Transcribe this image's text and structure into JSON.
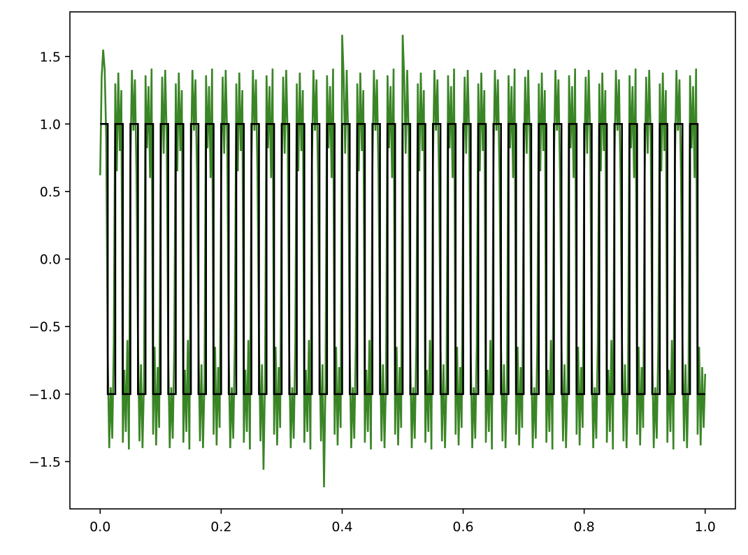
{
  "chart_data": {
    "type": "line",
    "xlim": [
      -0.05,
      1.05
    ],
    "ylim": [
      -1.85,
      1.83
    ],
    "xticks": [
      {
        "value": 0,
        "label": "0.0"
      },
      0.2,
      0.4,
      0.6,
      0.8,
      {
        "value": 1,
        "label": "1.0"
      }
    ],
    "yticks": [
      {
        "value": -1.5,
        "label": "−1.5"
      },
      {
        "value": -1,
        "label": "−1.0"
      },
      {
        "value": -0.5,
        "label": "−0.5"
      },
      {
        "value": 0,
        "label": "0.0"
      },
      0.5,
      {
        "value": 1,
        "label": "1.0"
      },
      1.5
    ],
    "series": [
      {
        "color": "#3a8526",
        "x": [
          0,
          0.0025,
          0.005,
          0.0075,
          0.01,
          0.0125,
          0.015,
          0.0175,
          0.02,
          0.0225,
          0.025,
          0.0275,
          0.03,
          0.0325,
          0.035,
          0.0375,
          0.04,
          0.0425,
          0.045,
          0.0475,
          0.05,
          0.0525,
          0.055,
          0.0575,
          0.06,
          0.0625,
          0.065,
          0.0675,
          0.07,
          0.0725,
          0.075,
          0.0775,
          0.08,
          0.0825,
          0.085,
          0.0875,
          0.09,
          0.0925,
          0.095,
          0.0975,
          0.1,
          0.1025,
          0.105,
          0.1075,
          0.11,
          0.1125,
          0.115,
          0.1175,
          0.12,
          0.1225,
          0.125,
          0.1275,
          0.13,
          0.1325,
          0.135,
          0.1375,
          0.14,
          0.1425,
          0.145,
          0.1475,
          0.15,
          0.1525,
          0.155,
          0.1575,
          0.16,
          0.1625,
          0.165,
          0.1675,
          0.17,
          0.1725,
          0.175,
          0.1775,
          0.18,
          0.1825,
          0.185,
          0.1875,
          0.19,
          0.1925,
          0.195,
          0.1975,
          0.2,
          0.2025,
          0.205,
          0.2075,
          0.21,
          0.2125,
          0.215,
          0.2175,
          0.22,
          0.2225,
          0.225,
          0.2275,
          0.23,
          0.2325,
          0.235,
          0.2375,
          0.24,
          0.2425,
          0.245,
          0.2475,
          0.25,
          0.2525,
          0.255,
          0.2575,
          0.26,
          0.2625,
          0.265,
          0.2675,
          0.27,
          0.2725,
          0.275,
          0.2775,
          0.28,
          0.2825,
          0.285,
          0.2875,
          0.29,
          0.2925,
          0.295,
          0.2975,
          0.3,
          0.3025,
          0.305,
          0.3075,
          0.31,
          0.3125,
          0.315,
          0.3175,
          0.32,
          0.3225,
          0.325,
          0.3275,
          0.33,
          0.3325,
          0.335,
          0.3375,
          0.34,
          0.3425,
          0.345,
          0.3475,
          0.35,
          0.3525,
          0.355,
          0.3575,
          0.36,
          0.3625,
          0.365,
          0.3675,
          0.37,
          0.3725,
          0.375,
          0.3775,
          0.38,
          0.3825,
          0.385,
          0.3875,
          0.39,
          0.3925,
          0.395,
          0.3975,
          0.4,
          0.4025,
          0.405,
          0.4075,
          0.41,
          0.4125,
          0.415,
          0.4175,
          0.42,
          0.4225,
          0.425,
          0.4275,
          0.43,
          0.4325,
          0.435,
          0.4375,
          0.44,
          0.4425,
          0.445,
          0.4475,
          0.45,
          0.4525,
          0.455,
          0.4575,
          0.46,
          0.4625,
          0.465,
          0.4675,
          0.47,
          0.4725,
          0.475,
          0.4775,
          0.48,
          0.4825,
          0.485,
          0.4875,
          0.49,
          0.4925,
          0.495,
          0.4975,
          0.5,
          0.5025,
          0.505,
          0.5075,
          0.51,
          0.5125,
          0.515,
          0.5175,
          0.52,
          0.5225,
          0.525,
          0.5275,
          0.53,
          0.5325,
          0.535,
          0.5375,
          0.54,
          0.5425,
          0.545,
          0.5475,
          0.55,
          0.5525,
          0.555,
          0.5575,
          0.56,
          0.5625,
          0.565,
          0.5675,
          0.57,
          0.5725,
          0.575,
          0.5775,
          0.58,
          0.5825,
          0.585,
          0.5875,
          0.59,
          0.5925,
          0.595,
          0.5975,
          0.6,
          0.6025,
          0.605,
          0.6075,
          0.61,
          0.6125,
          0.615,
          0.6175,
          0.62,
          0.6225,
          0.625,
          0.6275,
          0.63,
          0.6325,
          0.635,
          0.6375,
          0.64,
          0.6425,
          0.645,
          0.6475,
          0.65,
          0.6525,
          0.655,
          0.6575,
          0.66,
          0.6625,
          0.665,
          0.6675,
          0.67,
          0.6725,
          0.675,
          0.6775,
          0.68,
          0.6825,
          0.685,
          0.6875,
          0.69,
          0.6925,
          0.695,
          0.6975,
          0.7,
          0.7025,
          0.705,
          0.7075,
          0.71,
          0.7125,
          0.715,
          0.7175,
          0.72,
          0.7225,
          0.725,
          0.7275,
          0.73,
          0.7325,
          0.735,
          0.7375,
          0.74,
          0.7425,
          0.745,
          0.7475,
          0.75,
          0.7525,
          0.755,
          0.7575,
          0.76,
          0.7625,
          0.765,
          0.7675,
          0.77,
          0.7725,
          0.775,
          0.7775,
          0.78,
          0.7825,
          0.785,
          0.7875,
          0.79,
          0.7925,
          0.795,
          0.7975,
          0.8,
          0.8025,
          0.805,
          0.8075,
          0.81,
          0.8125,
          0.815,
          0.8175,
          0.82,
          0.8225,
          0.825,
          0.8275,
          0.83,
          0.8325,
          0.835,
          0.8375,
          0.84,
          0.8425,
          0.845,
          0.8475,
          0.85,
          0.8525,
          0.855,
          0.8575,
          0.86,
          0.8625,
          0.865,
          0.8675,
          0.87,
          0.8725,
          0.875,
          0.8775,
          0.88,
          0.8825,
          0.885,
          0.8875,
          0.89,
          0.8925,
          0.895,
          0.8975,
          0.9,
          0.9025,
          0.905,
          0.9075,
          0.91,
          0.9125,
          0.915,
          0.9175,
          0.92,
          0.9225,
          0.925,
          0.9275,
          0.93,
          0.9325,
          0.935,
          0.9375,
          0.94,
          0.9425,
          0.945,
          0.9475,
          0.95,
          0.9525,
          0.955,
          0.9575,
          0.96,
          0.9625,
          0.965,
          0.9675,
          0.97,
          0.9725,
          0.975,
          0.9775,
          0.98,
          0.9825,
          0.985,
          0.9875,
          0.99,
          0.9925,
          0.995,
          0.9975,
          1
        ],
        "values": [
          0.62,
          1.35,
          1.55,
          1.4,
          0.9,
          -0.7,
          -1.4,
          -0.95,
          -1.33,
          -0.64,
          1.3,
          0.65,
          1.38,
          0.8,
          1.25,
          -1.36,
          -0.82,
          -1.28,
          -0.6,
          -1.41,
          0.7,
          1.4,
          0.95,
          1.33,
          0.64,
          -0.62,
          -1.35,
          -0.78,
          -1.4,
          -0.9,
          1.36,
          0.82,
          1.28,
          0.6,
          1.41,
          -1.3,
          -0.65,
          -1.38,
          -0.8,
          -1.25,
          0.62,
          1.35,
          0.78,
          1.4,
          0.9,
          -0.7,
          -1.4,
          -0.95,
          -1.33,
          -0.64,
          1.3,
          0.65,
          1.38,
          0.8,
          1.25,
          -1.36,
          -0.82,
          -1.28,
          -0.6,
          -1.41,
          0.7,
          1.4,
          0.95,
          1.33,
          0.64,
          -0.62,
          -1.35,
          -0.78,
          -1.4,
          -0.9,
          1.36,
          0.82,
          1.28,
          0.6,
          1.41,
          -1.3,
          -0.65,
          -1.38,
          -0.8,
          -1.25,
          0.62,
          1.35,
          0.78,
          1.4,
          0.9,
          -0.7,
          -1.4,
          -0.95,
          -1.33,
          -0.64,
          1.3,
          0.65,
          1.38,
          0.8,
          1.25,
          -1.36,
          -0.82,
          -1.28,
          -0.6,
          -1.41,
          0.7,
          1.4,
          0.95,
          1.33,
          0.64,
          -0.62,
          -1.35,
          -0.78,
          -1.56,
          -0.9,
          1.36,
          0.82,
          1.28,
          0.6,
          1.41,
          -1.3,
          -0.65,
          -1.38,
          -0.8,
          -1.25,
          0.62,
          1.35,
          0.78,
          1.4,
          0.9,
          -0.7,
          -1.4,
          -0.95,
          -1.33,
          -0.64,
          1.3,
          0.65,
          1.38,
          0.8,
          1.25,
          -1.36,
          -0.82,
          -1.28,
          -0.6,
          -1.41,
          0.7,
          1.4,
          0.95,
          1.33,
          0.64,
          -0.62,
          -1.35,
          -0.78,
          -1.69,
          -0.9,
          1.36,
          0.82,
          1.28,
          0.6,
          1.41,
          -1.3,
          -0.65,
          -1.38,
          -0.8,
          -1.25,
          1.66,
          1.35,
          0.78,
          1.4,
          0.9,
          -0.7,
          -1.4,
          -0.95,
          -1.33,
          -0.64,
          1.3,
          0.65,
          1.38,
          0.8,
          1.25,
          -1.36,
          -0.82,
          -1.28,
          -0.6,
          -1.41,
          0.7,
          1.4,
          0.95,
          1.33,
          0.64,
          -0.62,
          -1.35,
          -0.78,
          -1.4,
          -0.9,
          1.36,
          0.82,
          1.28,
          0.6,
          1.41,
          -1.3,
          -0.65,
          -1.38,
          -0.8,
          -1.25,
          1.66,
          1.35,
          0.78,
          1.4,
          0.9,
          -0.7,
          -1.4,
          -0.95,
          -1.33,
          -0.64,
          1.3,
          0.65,
          1.38,
          0.8,
          1.25,
          -1.36,
          -0.82,
          -1.28,
          -0.6,
          -1.41,
          0.7,
          1.4,
          0.95,
          1.33,
          0.64,
          -0.62,
          -1.35,
          -0.78,
          -1.4,
          -0.9,
          1.36,
          0.82,
          1.28,
          0.6,
          1.41,
          -1.3,
          -0.65,
          -1.38,
          -0.8,
          -1.25,
          0.62,
          1.35,
          0.78,
          1.4,
          0.9,
          -0.7,
          -1.4,
          -0.95,
          -1.33,
          -0.64,
          1.3,
          0.65,
          1.38,
          0.8,
          1.25,
          -1.36,
          -0.82,
          -1.28,
          -0.6,
          -1.41,
          0.7,
          1.4,
          0.95,
          1.33,
          0.64,
          -0.62,
          -1.35,
          -0.78,
          -1.4,
          -0.9,
          1.36,
          0.82,
          1.28,
          0.6,
          1.41,
          -1.3,
          -0.65,
          -1.38,
          -0.8,
          -1.25,
          0.62,
          1.35,
          0.78,
          1.4,
          0.9,
          -0.7,
          -1.4,
          -0.95,
          -1.33,
          -0.64,
          1.3,
          0.65,
          1.38,
          0.8,
          1.25,
          -1.36,
          -0.82,
          -1.28,
          -0.6,
          -1.41,
          0.7,
          1.4,
          0.95,
          1.33,
          0.64,
          -0.62,
          -1.35,
          -0.78,
          -1.4,
          -0.9,
          1.36,
          0.82,
          1.28,
          0.6,
          1.41,
          -1.3,
          -0.65,
          -1.38,
          -0.8,
          -1.25,
          0.62,
          1.35,
          0.78,
          1.4,
          0.9,
          -0.7,
          -1.4,
          -0.95,
          -1.33,
          -0.64,
          1.3,
          0.65,
          1.38,
          0.8,
          1.25,
          -1.36,
          -0.82,
          -1.28,
          -0.6,
          -1.41,
          0.7,
          1.4,
          0.95,
          1.33,
          0.64,
          -0.62,
          -1.35,
          -0.78,
          -1.4,
          -0.9,
          1.36,
          0.82,
          1.28,
          0.6,
          1.41,
          -1.3,
          -0.65,
          -1.38,
          -0.8,
          -1.25,
          0.62,
          1.35,
          0.78,
          1.4,
          0.9,
          -0.7,
          -1.4,
          -0.95,
          -1.33,
          -0.64,
          1.3,
          0.65,
          1.38,
          0.8,
          1.25,
          -1.36,
          -0.82,
          -1.28,
          -0.6,
          -1.41,
          0.7,
          1.4,
          0.95,
          1.33,
          0.64,
          -0.62,
          -1.35,
          -0.78,
          -1.4,
          -0.9,
          1.36,
          0.82,
          1.28,
          0.6,
          1.41,
          -1.3,
          -0.65,
          -1.38,
          -0.8,
          -1.25,
          -0.85
        ]
      },
      {
        "color": "#000000",
        "x": [
          0,
          0.0125,
          0.0125,
          0.025,
          0.025,
          0.0375,
          0.0375,
          0.05,
          0.05,
          0.0625,
          0.0625,
          0.075,
          0.075,
          0.0875,
          0.0875,
          0.1,
          0.1,
          0.1125,
          0.1125,
          0.125,
          0.125,
          0.1375,
          0.1375,
          0.15,
          0.15,
          0.1625,
          0.1625,
          0.175,
          0.175,
          0.1875,
          0.1875,
          0.2,
          0.2,
          0.2125,
          0.2125,
          0.225,
          0.225,
          0.2375,
          0.2375,
          0.25,
          0.25,
          0.2625,
          0.2625,
          0.275,
          0.275,
          0.2875,
          0.2875,
          0.3,
          0.3,
          0.3125,
          0.3125,
          0.325,
          0.325,
          0.3375,
          0.3375,
          0.35,
          0.35,
          0.3625,
          0.3625,
          0.375,
          0.375,
          0.3875,
          0.3875,
          0.4,
          0.4,
          0.4125,
          0.4125,
          0.425,
          0.425,
          0.4375,
          0.4375,
          0.45,
          0.45,
          0.4625,
          0.4625,
          0.475,
          0.475,
          0.4875,
          0.4875,
          0.5,
          0.5,
          0.5125,
          0.5125,
          0.525,
          0.525,
          0.5375,
          0.5375,
          0.55,
          0.55,
          0.5625,
          0.5625,
          0.575,
          0.575,
          0.5875,
          0.5875,
          0.6,
          0.6,
          0.6125,
          0.6125,
          0.625,
          0.625,
          0.6375,
          0.6375,
          0.65,
          0.65,
          0.6625,
          0.6625,
          0.675,
          0.675,
          0.6875,
          0.6875,
          0.7,
          0.7,
          0.7125,
          0.7125,
          0.725,
          0.725,
          0.7375,
          0.7375,
          0.75,
          0.75,
          0.7625,
          0.7625,
          0.775,
          0.775,
          0.7875,
          0.7875,
          0.8,
          0.8,
          0.8125,
          0.8125,
          0.825,
          0.825,
          0.8375,
          0.8375,
          0.85,
          0.85,
          0.8625,
          0.8625,
          0.875,
          0.875,
          0.8875,
          0.8875,
          0.9,
          0.9,
          0.9125,
          0.9125,
          0.925,
          0.925,
          0.9375,
          0.9375,
          0.95,
          0.95,
          0.9625,
          0.9625,
          0.975,
          0.975,
          0.9875,
          0.9875,
          1
        ],
        "values": [
          1,
          1,
          -1,
          -1,
          1,
          1,
          -1,
          -1,
          1,
          1,
          -1,
          -1,
          1,
          1,
          -1,
          -1,
          1,
          1,
          -1,
          -1,
          1,
          1,
          -1,
          -1,
          1,
          1,
          -1,
          -1,
          1,
          1,
          -1,
          -1,
          1,
          1,
          -1,
          -1,
          1,
          1,
          -1,
          -1,
          1,
          1,
          -1,
          -1,
          1,
          1,
          -1,
          -1,
          1,
          1,
          -1,
          -1,
          1,
          1,
          -1,
          -1,
          1,
          1,
          -1,
          -1,
          1,
          1,
          -1,
          -1,
          1,
          1,
          -1,
          -1,
          1,
          1,
          -1,
          -1,
          1,
          1,
          -1,
          -1,
          1,
          1,
          -1,
          -1,
          1,
          1,
          -1,
          -1,
          1,
          1,
          -1,
          -1,
          1,
          1,
          -1,
          -1,
          1,
          1,
          -1,
          -1,
          1,
          1,
          -1,
          -1,
          1,
          1,
          -1,
          -1,
          1,
          1,
          -1,
          -1,
          1,
          1,
          -1,
          -1,
          1,
          1,
          -1,
          -1,
          1,
          1,
          -1,
          -1,
          1,
          1,
          -1,
          -1,
          1,
          1,
          -1,
          -1,
          1,
          1,
          -1,
          -1,
          1,
          1,
          -1,
          -1,
          1,
          1,
          -1,
          -1,
          1,
          1,
          -1,
          -1,
          1,
          1,
          -1,
          -1,
          1,
          1,
          -1,
          -1,
          1,
          1,
          -1,
          -1,
          1,
          1,
          -1,
          -1
        ]
      }
    ]
  }
}
